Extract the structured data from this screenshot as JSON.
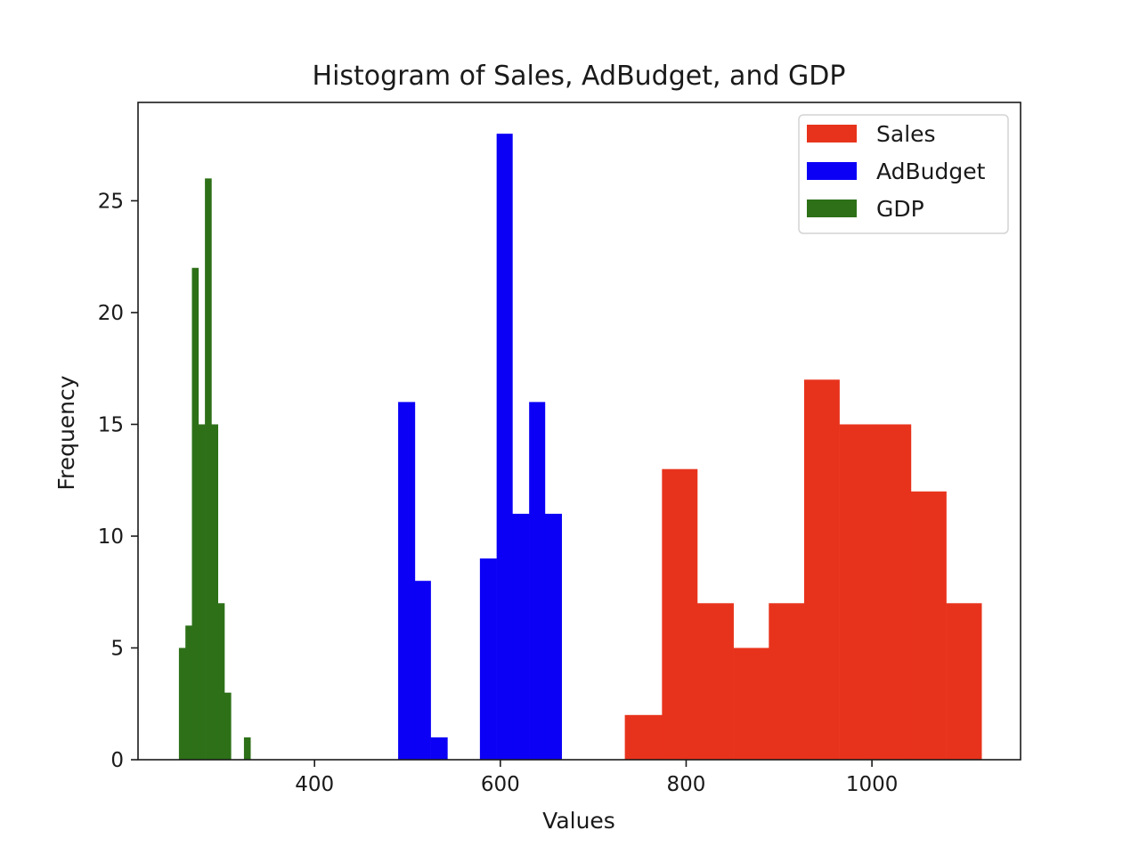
{
  "chart_data": {
    "type": "bar",
    "subtype": "histogram",
    "title": "Histogram of Sales, AdBudget, and GDP",
    "xlabel": "Values",
    "ylabel": "Frequency",
    "xlim": [
      210,
      1160
    ],
    "ylim": [
      0,
      29.4
    ],
    "xticks": [
      400,
      600,
      800,
      1000
    ],
    "yticks": [
      0,
      5,
      10,
      15,
      20,
      25
    ],
    "grid": false,
    "legend_position": "top-right",
    "series": [
      {
        "name": "Sales",
        "color": "#e8331c",
        "bins": [
          {
            "x0": 734,
            "x1": 774,
            "count": 2
          },
          {
            "x0": 774,
            "x1": 812,
            "count": 13
          },
          {
            "x0": 812,
            "x1": 851,
            "count": 7
          },
          {
            "x0": 851,
            "x1": 889,
            "count": 5
          },
          {
            "x0": 889,
            "x1": 927,
            "count": 7
          },
          {
            "x0": 927,
            "x1": 965,
            "count": 17
          },
          {
            "x0": 965,
            "x1": 1004,
            "count": 15
          },
          {
            "x0": 1004,
            "x1": 1042,
            "count": 15
          },
          {
            "x0": 1042,
            "x1": 1080,
            "count": 12
          },
          {
            "x0": 1080,
            "x1": 1118,
            "count": 7
          }
        ]
      },
      {
        "name": "AdBudget",
        "color": "#0b00f5",
        "bins": [
          {
            "x0": 490,
            "x1": 508,
            "count": 16
          },
          {
            "x0": 508,
            "x1": 525,
            "count": 8
          },
          {
            "x0": 525,
            "x1": 543,
            "count": 1
          },
          {
            "x0": 543,
            "x1": 560,
            "count": 0
          },
          {
            "x0": 560,
            "x1": 578,
            "count": 0
          },
          {
            "x0": 578,
            "x1": 596,
            "count": 9
          },
          {
            "x0": 596,
            "x1": 613,
            "count": 28
          },
          {
            "x0": 613,
            "x1": 631,
            "count": 11
          },
          {
            "x0": 631,
            "x1": 648,
            "count": 16
          },
          {
            "x0": 648,
            "x1": 666,
            "count": 11
          }
        ]
      },
      {
        "name": "GDP",
        "color": "#2d7018",
        "bins": [
          {
            "x0": 254,
            "x1": 261,
            "count": 5
          },
          {
            "x0": 261,
            "x1": 268,
            "count": 6
          },
          {
            "x0": 268,
            "x1": 275,
            "count": 22
          },
          {
            "x0": 275,
            "x1": 282,
            "count": 15
          },
          {
            "x0": 282,
            "x1": 289,
            "count": 26
          },
          {
            "x0": 289,
            "x1": 296,
            "count": 15
          },
          {
            "x0": 296,
            "x1": 303,
            "count": 7
          },
          {
            "x0": 303,
            "x1": 310,
            "count": 3
          },
          {
            "x0": 310,
            "x1": 317,
            "count": 0
          },
          {
            "x0": 317,
            "x1": 324,
            "count": 0
          },
          {
            "x0": 324,
            "x1": 331,
            "count": 1
          }
        ]
      }
    ]
  }
}
